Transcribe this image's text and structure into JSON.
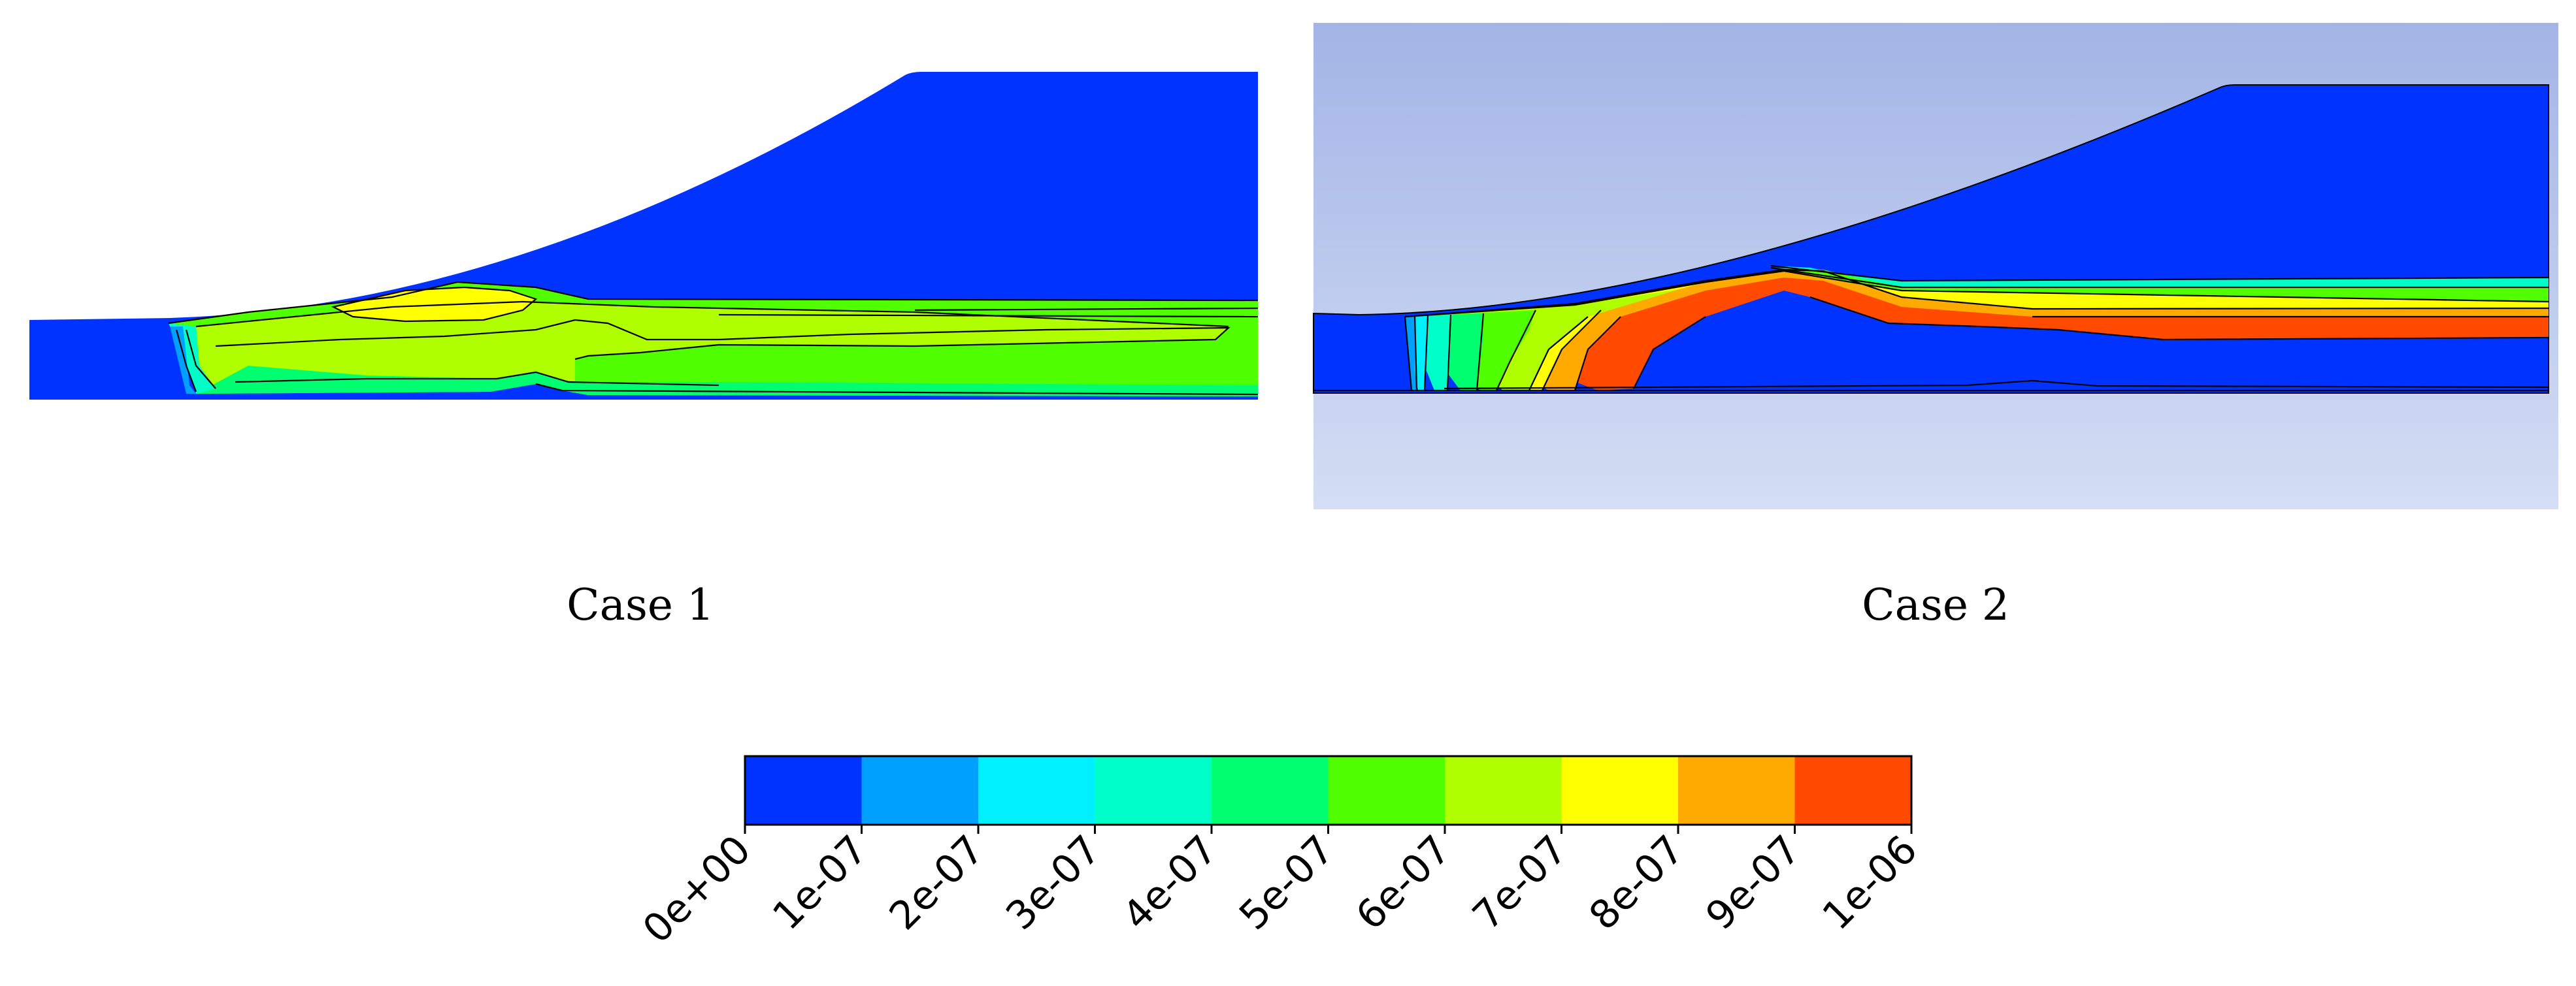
{
  "cases": [
    {
      "label": "Case 1"
    },
    {
      "label": "Case 2"
    }
  ],
  "colorbar": {
    "ticks": [
      "0e+00",
      "1e-07",
      "2e-07",
      "3e-07",
      "4e-07",
      "5e-07",
      "6e-07",
      "7e-07",
      "8e-07",
      "9e-07",
      "1e-06"
    ],
    "bins": [
      "#0033ff",
      "#00a0ff",
      "#00f0ff",
      "#00ffc8",
      "#00ff70",
      "#50ff00",
      "#b0ff00",
      "#ffff00",
      "#ffaa00",
      "#ff4a00"
    ]
  },
  "colors": {
    "background_fluent": [
      "#a3b4e6",
      "#d4def4"
    ],
    "field_low": "#0033ff",
    "contour_line": "#000000"
  }
}
